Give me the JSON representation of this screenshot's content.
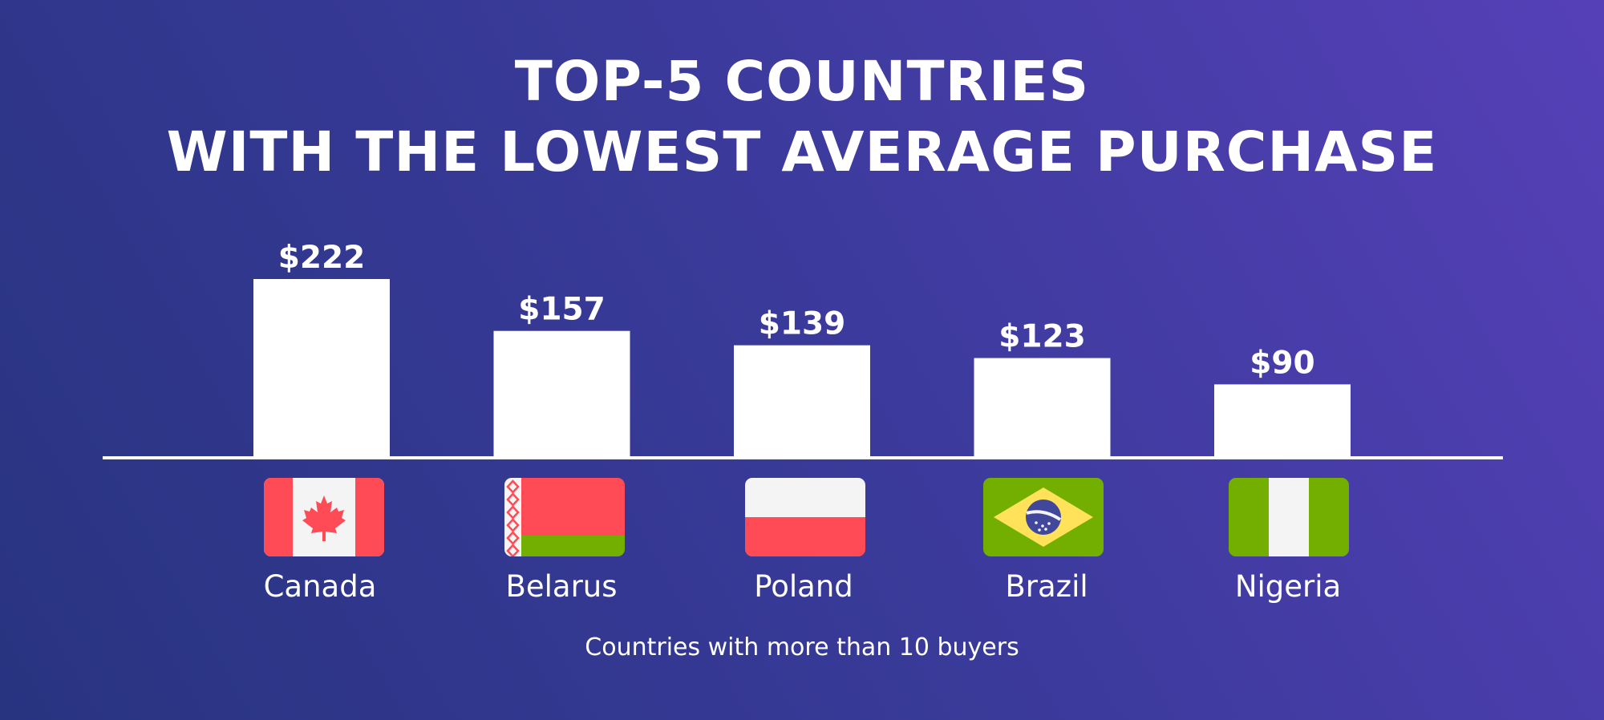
{
  "title": {
    "line1": "TOP-5 COUNTRIES",
    "line2": "WITH THE LOWEST AVERAGE PURCHASE"
  },
  "footnote": "Countries with more than 10 buyers",
  "colors": {
    "background_start": "#283480",
    "background_end": "#5640b8",
    "bar": "#ffffff",
    "baseline": "#ffffff"
  },
  "flags": [
    {
      "country": "Canada",
      "icon": "canada-flag-icon"
    },
    {
      "country": "Belarus",
      "icon": "belarus-flag-icon"
    },
    {
      "country": "Poland",
      "icon": "poland-flag-icon"
    },
    {
      "country": "Brazil",
      "icon": "brazil-flag-icon"
    },
    {
      "country": "Nigeria",
      "icon": "nigeria-flag-icon"
    }
  ],
  "chart_data": {
    "type": "bar",
    "title": "TOP-5 COUNTRIES WITH THE LOWEST AVERAGE PURCHASE",
    "categories": [
      "Canada",
      "Belarus",
      "Poland",
      "Brazil",
      "Nigeria"
    ],
    "values": [
      222,
      157,
      139,
      123,
      90
    ],
    "value_labels": [
      "$222",
      "$157",
      "$139",
      "$123",
      "$90"
    ],
    "xlabel": "",
    "ylabel": "",
    "unit": "$",
    "grid": false,
    "legend": "none",
    "ylim": [
      0,
      222
    ]
  }
}
